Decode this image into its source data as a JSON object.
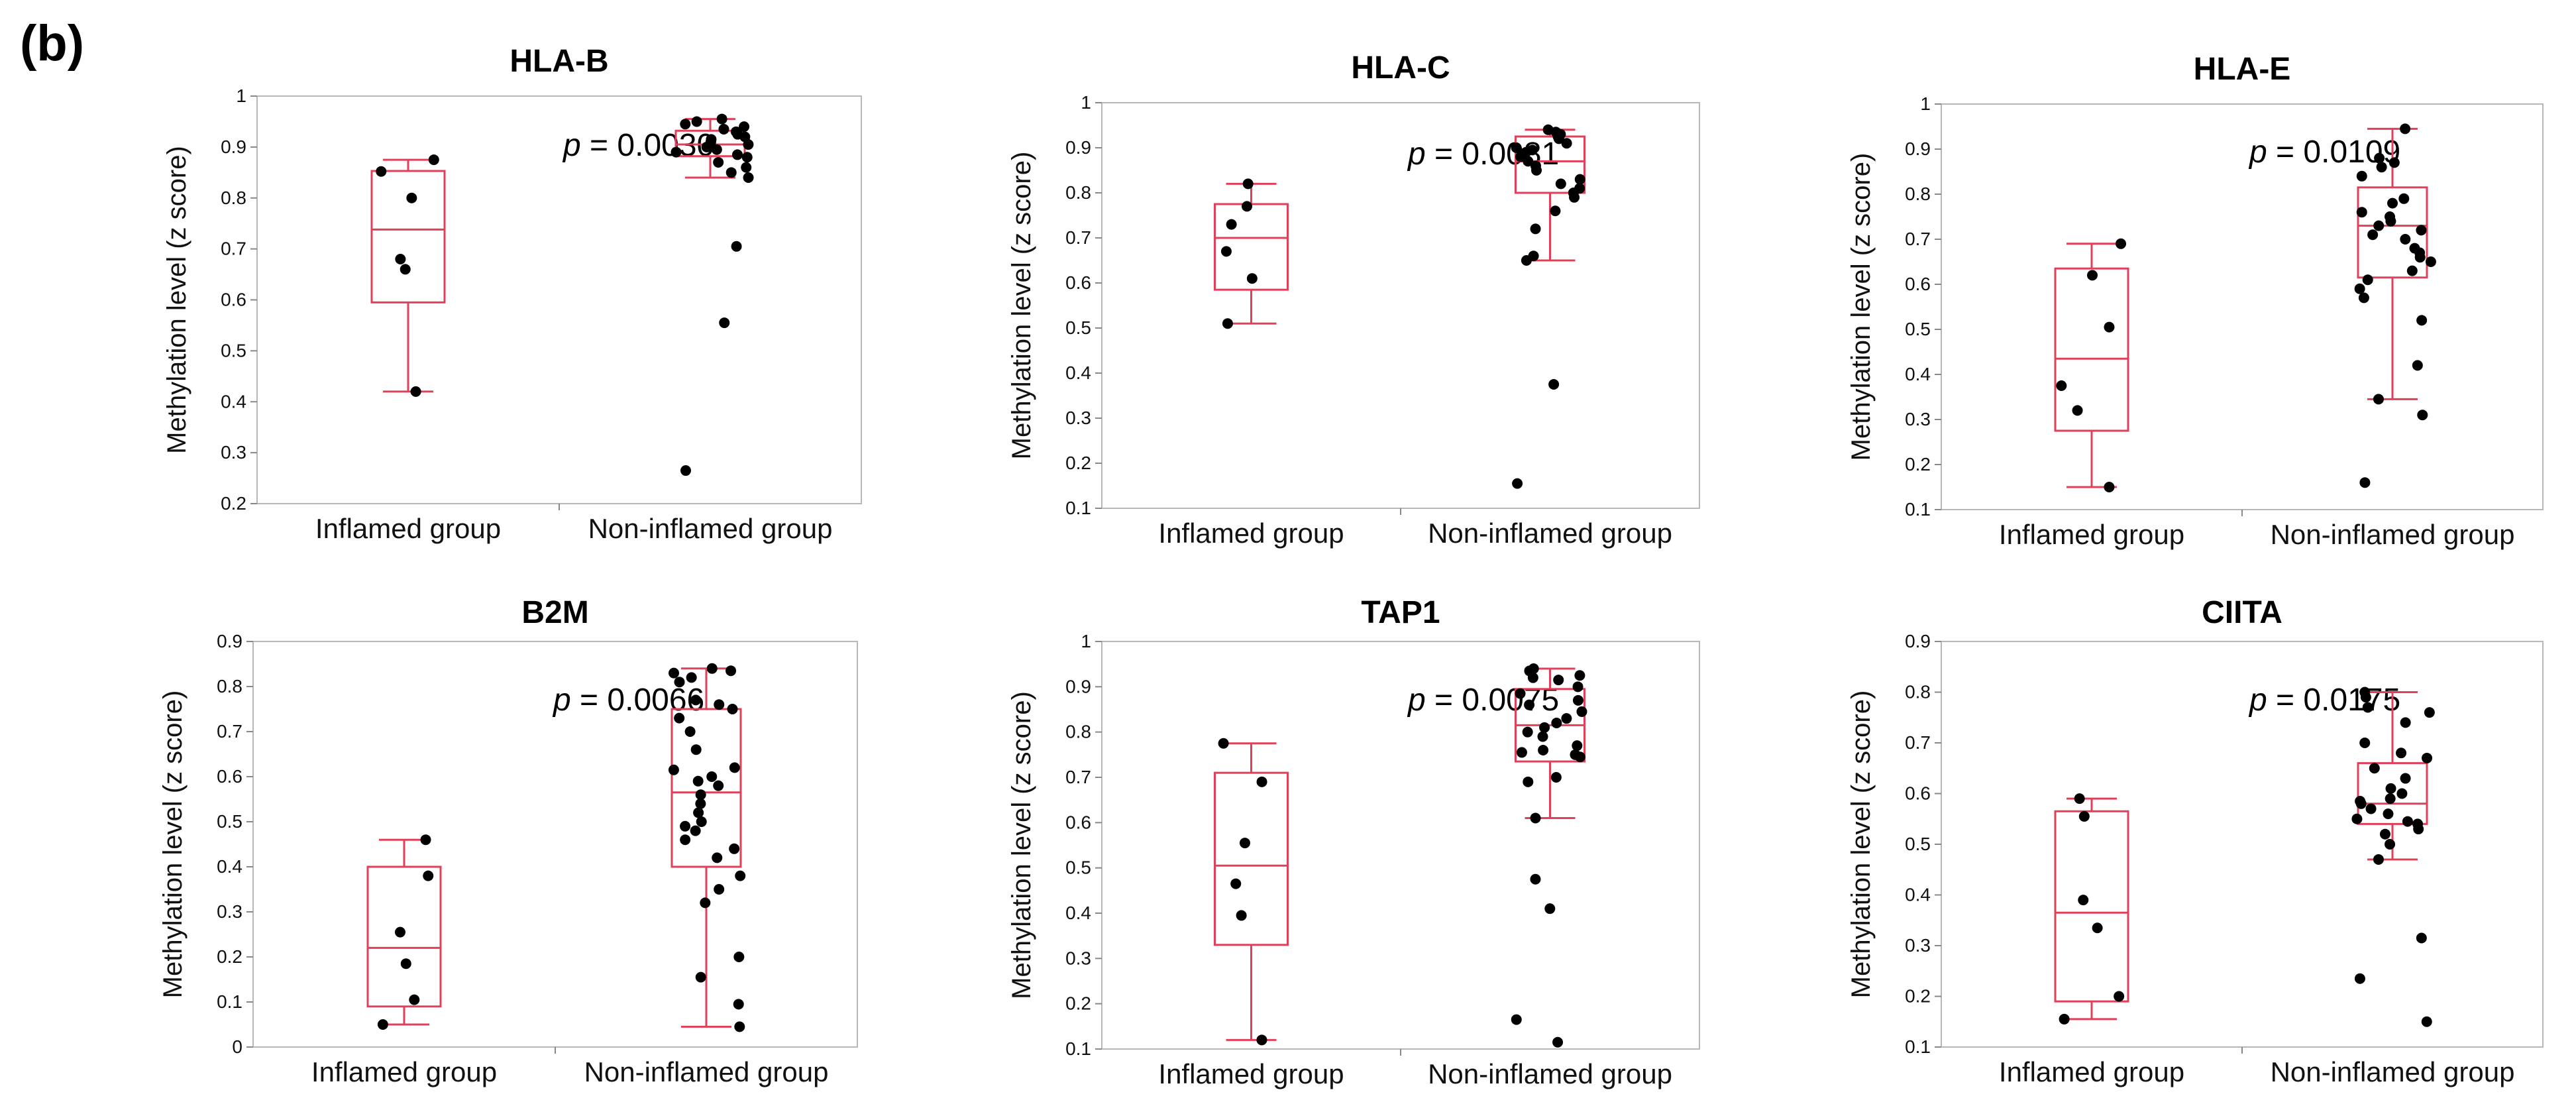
{
  "panel_label": "(b)",
  "chart_data": [
    {
      "type": "box",
      "title": "HLA-B",
      "ylabel": "Methylation level (z score)",
      "ylim": [
        0.2,
        1.0
      ],
      "yticks": [
        "0.2",
        "0.3",
        "0.4",
        "0.5",
        "0.6",
        "0.7",
        "0.8",
        "0.9",
        "1"
      ],
      "categories": [
        "Inflamed group",
        "Non-inflamed group"
      ],
      "p_value": "0.0030",
      "boxes": [
        {
          "whisker_low": 0.42,
          "q1": 0.595,
          "median": 0.738,
          "q3": 0.853,
          "whisker_high": 0.875,
          "points": [
            0.875,
            0.852,
            0.8,
            0.68,
            0.66,
            0.42
          ]
        },
        {
          "whisker_low": 0.84,
          "q1": 0.882,
          "median": 0.905,
          "q3": 0.932,
          "whisker_high": 0.955,
          "points": [
            0.955,
            0.95,
            0.945,
            0.94,
            0.935,
            0.93,
            0.925,
            0.92,
            0.915,
            0.91,
            0.905,
            0.9,
            0.895,
            0.89,
            0.885,
            0.88,
            0.87,
            0.86,
            0.85,
            0.84,
            0.705,
            0.555,
            0.265
          ]
        }
      ]
    },
    {
      "type": "box",
      "title": "HLA-C",
      "ylabel": "Methylation level (z score)",
      "ylim": [
        0.1,
        1.0
      ],
      "yticks": [
        "0.1",
        "0.2",
        "0.3",
        "0.4",
        "0.5",
        "0.6",
        "0.7",
        "0.8",
        "0.9",
        "1"
      ],
      "categories": [
        "Inflamed group",
        "Non-inflamed group"
      ],
      "p_value": "0.0081",
      "boxes": [
        {
          "whisker_low": 0.51,
          "q1": 0.585,
          "median": 0.7,
          "q3": 0.775,
          "whisker_high": 0.82,
          "points": [
            0.82,
            0.77,
            0.73,
            0.67,
            0.61,
            0.51
          ]
        },
        {
          "whisker_low": 0.65,
          "q1": 0.8,
          "median": 0.87,
          "q3": 0.925,
          "whisker_high": 0.94,
          "points": [
            0.94,
            0.935,
            0.93,
            0.925,
            0.92,
            0.91,
            0.9,
            0.895,
            0.89,
            0.88,
            0.87,
            0.86,
            0.85,
            0.83,
            0.82,
            0.81,
            0.8,
            0.79,
            0.76,
            0.72,
            0.66,
            0.65,
            0.375,
            0.155
          ]
        }
      ]
    },
    {
      "type": "box",
      "title": "HLA-E",
      "ylabel": "Methylation level (z score)",
      "ylim": [
        0.1,
        1.0
      ],
      "yticks": [
        "0.1",
        "0.2",
        "0.3",
        "0.4",
        "0.5",
        "0.6",
        "0.7",
        "0.8",
        "0.9",
        "1"
      ],
      "categories": [
        "Inflamed group",
        "Non-inflamed group"
      ],
      "p_value": "0.0109",
      "boxes": [
        {
          "whisker_low": 0.15,
          "q1": 0.275,
          "median": 0.435,
          "q3": 0.635,
          "whisker_high": 0.69,
          "points": [
            0.69,
            0.62,
            0.505,
            0.375,
            0.32,
            0.15
          ]
        },
        {
          "whisker_low": 0.345,
          "q1": 0.615,
          "median": 0.73,
          "q3": 0.815,
          "whisker_high": 0.945,
          "points": [
            0.945,
            0.88,
            0.87,
            0.86,
            0.84,
            0.79,
            0.78,
            0.76,
            0.75,
            0.74,
            0.73,
            0.72,
            0.71,
            0.7,
            0.68,
            0.67,
            0.66,
            0.65,
            0.63,
            0.61,
            0.59,
            0.57,
            0.52,
            0.42,
            0.345,
            0.31,
            0.16
          ]
        }
      ]
    },
    {
      "type": "box",
      "title": "B2M",
      "ylabel": "Methylation level (z score)",
      "ylim": [
        0.0,
        0.9
      ],
      "yticks": [
        "0",
        "0.1",
        "0.2",
        "0.3",
        "0.4",
        "0.5",
        "0.6",
        "0.7",
        "0.8",
        "0.9"
      ],
      "categories": [
        "Inflamed group",
        "Non-inflamed group"
      ],
      "p_value": "0.0066",
      "boxes": [
        {
          "whisker_low": 0.05,
          "q1": 0.09,
          "median": 0.22,
          "q3": 0.4,
          "whisker_high": 0.46,
          "points": [
            0.46,
            0.38,
            0.255,
            0.185,
            0.105,
            0.05
          ]
        },
        {
          "whisker_low": 0.045,
          "q1": 0.4,
          "median": 0.565,
          "q3": 0.75,
          "whisker_high": 0.84,
          "points": [
            0.84,
            0.835,
            0.83,
            0.82,
            0.81,
            0.77,
            0.76,
            0.75,
            0.73,
            0.7,
            0.66,
            0.62,
            0.615,
            0.6,
            0.59,
            0.58,
            0.56,
            0.54,
            0.52,
            0.5,
            0.49,
            0.48,
            0.46,
            0.44,
            0.42,
            0.38,
            0.35,
            0.32,
            0.2,
            0.155,
            0.095,
            0.045
          ]
        }
      ]
    },
    {
      "type": "box",
      "title": "TAP1",
      "ylabel": "Methylation level (z score)",
      "ylim": [
        0.1,
        1.0
      ],
      "yticks": [
        "0.1",
        "0.2",
        "0.3",
        "0.4",
        "0.5",
        "0.6",
        "0.7",
        "0.8",
        "0.9",
        "1"
      ],
      "categories": [
        "Inflamed group",
        "Non-inflamed group"
      ],
      "p_value": "0.0075",
      "boxes": [
        {
          "whisker_low": 0.12,
          "q1": 0.33,
          "median": 0.505,
          "q3": 0.71,
          "whisker_high": 0.775,
          "points": [
            0.775,
            0.69,
            0.555,
            0.465,
            0.395,
            0.12
          ]
        },
        {
          "whisker_low": 0.61,
          "q1": 0.735,
          "median": 0.815,
          "q3": 0.895,
          "whisker_high": 0.94,
          "points": [
            0.94,
            0.935,
            0.925,
            0.92,
            0.915,
            0.9,
            0.885,
            0.87,
            0.86,
            0.845,
            0.83,
            0.82,
            0.81,
            0.8,
            0.79,
            0.77,
            0.76,
            0.755,
            0.75,
            0.745,
            0.7,
            0.69,
            0.61,
            0.475,
            0.41,
            0.165,
            0.115
          ]
        }
      ]
    },
    {
      "type": "box",
      "title": "CIITA",
      "ylabel": "Methylation level (z score)",
      "ylim": [
        0.1,
        0.9
      ],
      "yticks": [
        "0.1",
        "0.2",
        "0.3",
        "0.4",
        "0.5",
        "0.6",
        "0.7",
        "0.8",
        "0.9"
      ],
      "categories": [
        "Inflamed group",
        "Non-inflamed group"
      ],
      "p_value": "0.0175",
      "boxes": [
        {
          "whisker_low": 0.155,
          "q1": 0.19,
          "median": 0.365,
          "q3": 0.565,
          "whisker_high": 0.59,
          "points": [
            0.59,
            0.555,
            0.39,
            0.335,
            0.2,
            0.155
          ]
        },
        {
          "whisker_low": 0.47,
          "q1": 0.54,
          "median": 0.58,
          "q3": 0.66,
          "whisker_high": 0.8,
          "points": [
            0.8,
            0.79,
            0.77,
            0.76,
            0.74,
            0.7,
            0.68,
            0.67,
            0.65,
            0.63,
            0.61,
            0.6,
            0.59,
            0.585,
            0.58,
            0.57,
            0.56,
            0.55,
            0.545,
            0.54,
            0.53,
            0.52,
            0.5,
            0.47,
            0.315,
            0.235,
            0.15
          ]
        }
      ]
    }
  ]
}
